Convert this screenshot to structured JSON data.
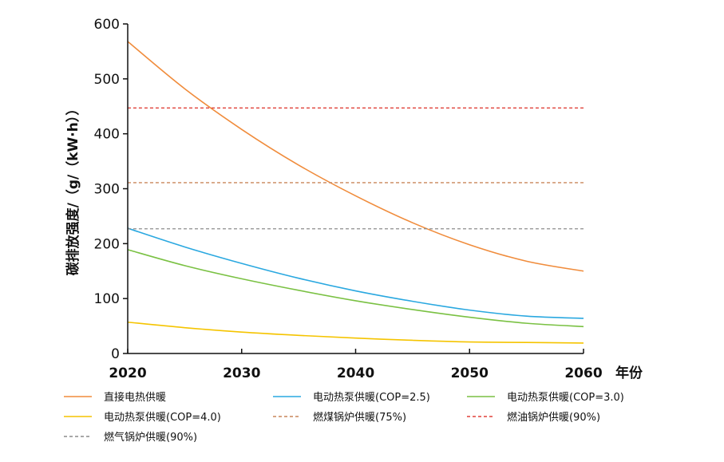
{
  "chart_data": {
    "type": "line",
    "title": "",
    "xlabel": "年份",
    "ylabel": "碳排放强度/（g/（kW·h））",
    "xlim": [
      2020,
      2060
    ],
    "ylim": [
      0,
      600
    ],
    "x_ticks": [
      "2020",
      "2030",
      "2040",
      "2050",
      "2060"
    ],
    "y_ticks": [
      "0",
      "100",
      "200",
      "300",
      "400",
      "500",
      "600"
    ],
    "grid": false,
    "legend_position": "bottom",
    "x": [
      2020,
      2025,
      2030,
      2035,
      2040,
      2045,
      2050,
      2055,
      2060
    ],
    "series": [
      {
        "name": "直接电热供暖",
        "color": "#f08c3c",
        "style": "solid",
        "values": [
          568,
          482,
          408,
          343,
          287,
          238,
          198,
          168,
          150
        ]
      },
      {
        "name": "电动热泵供暖(COP=2.5)",
        "color": "#2aa8e0",
        "style": "solid",
        "values": [
          228,
          194,
          164,
          137,
          114,
          95,
          79,
          68,
          64
        ]
      },
      {
        "name": "电动热泵供暖(COP=3.0)",
        "color": "#7ac143",
        "style": "solid",
        "values": [
          189,
          160,
          136,
          115,
          96,
          80,
          66,
          55,
          49
        ]
      },
      {
        "name": "电动热泵供暖(COP=4.0)",
        "color": "#f5c400",
        "style": "solid",
        "values": [
          57,
          47,
          39,
          33,
          28,
          24,
          21,
          20,
          19
        ]
      },
      {
        "name": "燃煤锅炉供暖(75%)",
        "color": "#c9865a",
        "style": "dashed",
        "values": [
          311,
          311,
          311,
          311,
          311,
          311,
          311,
          311,
          311
        ]
      },
      {
        "name": "燃油锅炉供暖(90%)",
        "color": "#e0413a",
        "style": "dashed",
        "values": [
          447,
          447,
          447,
          447,
          447,
          447,
          447,
          447,
          447
        ]
      },
      {
        "name": "燃气锅炉供暖(90%)",
        "color": "#8c8c8c",
        "style": "dashed",
        "values": [
          227,
          227,
          227,
          227,
          227,
          227,
          227,
          227,
          227
        ]
      }
    ]
  }
}
